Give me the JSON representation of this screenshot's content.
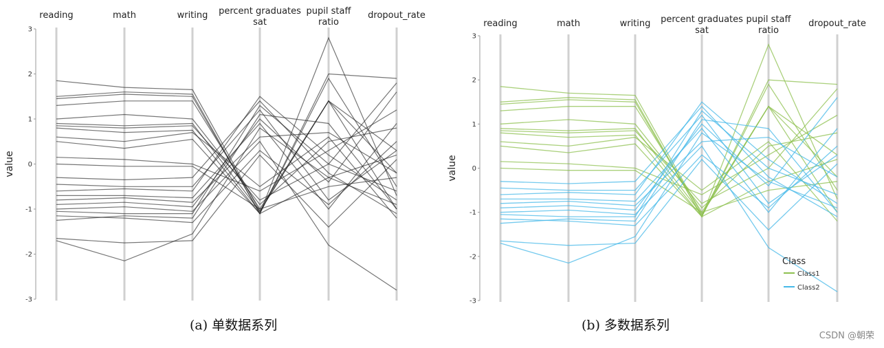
{
  "captions": {
    "left": "(a)  单数据系列",
    "right": "(b)  多数据系列"
  },
  "watermark": "CSDN @朝荣",
  "colors": {
    "single": "#222222",
    "class1": "#8dc04f",
    "class2": "#45b8e8",
    "axis": "#d0d0d0"
  },
  "chart_data": [
    {
      "type": "parallel-coordinates",
      "dimensions": [
        "reading",
        "math",
        "writing",
        "percent graduates sat",
        "pupil staff ratio",
        "dropout_rate"
      ],
      "ylabel": "value",
      "ylim": [
        -3,
        3
      ],
      "yticks": [
        3,
        2,
        1,
        0,
        -1,
        -2,
        -3
      ],
      "series": [
        {
          "values": [
            [
              1.85,
              1.7,
              1.65,
              -1.05,
              1.4,
              0.3
            ],
            [
              1.5,
              1.6,
              1.55,
              -1.1,
              2.8,
              -0.7
            ],
            [
              1.45,
              1.55,
              1.5,
              -1.1,
              2.0,
              1.9
            ],
            [
              1.3,
              1.4,
              1.4,
              -1.0,
              1.4,
              -0.2
            ],
            [
              1.0,
              1.1,
              1.0,
              -0.9,
              0.5,
              0.8
            ],
            [
              0.9,
              0.85,
              0.9,
              -1.05,
              1.4,
              -1.0
            ],
            [
              0.85,
              0.8,
              0.85,
              -0.8,
              0.0,
              1.8
            ],
            [
              0.8,
              0.7,
              0.75,
              -1.1,
              -0.3,
              0.2
            ],
            [
              0.6,
              0.5,
              0.7,
              -0.5,
              0.6,
              -1.2
            ],
            [
              0.5,
              0.35,
              0.55,
              -1.1,
              1.9,
              -0.5
            ],
            [
              0.15,
              0.1,
              0.0,
              -0.6,
              0.3,
              1.2
            ],
            [
              0.0,
              -0.05,
              -0.05,
              -1.0,
              -0.5,
              -0.3
            ],
            [
              -0.3,
              -0.35,
              -0.3,
              1.4,
              -0.2,
              -1.1
            ],
            [
              -0.45,
              -0.5,
              -0.5,
              1.2,
              -0.8,
              0.3
            ],
            [
              -0.6,
              -0.55,
              -0.6,
              1.5,
              0.2,
              -0.8
            ],
            [
              -0.7,
              -0.7,
              -0.75,
              0.9,
              -1.0,
              0.9
            ],
            [
              -0.8,
              -0.75,
              -0.85,
              0.6,
              0.7,
              -0.2
            ],
            [
              -0.9,
              -0.85,
              -0.95,
              1.0,
              -0.4,
              1.6
            ],
            [
              -1.0,
              -0.95,
              -1.05,
              0.5,
              -1.8,
              -2.8
            ],
            [
              -1.05,
              -1.1,
              -1.1,
              1.3,
              0.0,
              -0.6
            ],
            [
              -1.15,
              -1.2,
              -1.3,
              0.3,
              -0.9,
              0.5
            ],
            [
              -1.25,
              -1.15,
              -1.2,
              1.1,
              0.9,
              -1.0
            ],
            [
              -1.65,
              -1.75,
              -1.7,
              0.2,
              -1.4,
              0.1
            ],
            [
              -1.7,
              -2.15,
              -1.55,
              0.8,
              -0.3,
              -0.9
            ]
          ]
        }
      ]
    },
    {
      "type": "parallel-coordinates",
      "dimensions": [
        "reading",
        "math",
        "writing",
        "percent graduates sat",
        "pupil staff ratio",
        "dropout_rate"
      ],
      "ylabel": "value",
      "ylim": [
        -3,
        3
      ],
      "yticks": [
        3,
        2,
        1,
        0,
        -1,
        -2,
        -3
      ],
      "legend": {
        "title": "Class",
        "position": "bottom-right",
        "items": [
          "Class1",
          "Class2"
        ]
      },
      "series": [
        {
          "name": "Class1",
          "values": [
            [
              1.85,
              1.7,
              1.65,
              -1.05,
              1.4,
              0.3
            ],
            [
              1.5,
              1.6,
              1.55,
              -1.1,
              2.8,
              -0.7
            ],
            [
              1.45,
              1.55,
              1.5,
              -1.1,
              2.0,
              1.9
            ],
            [
              1.3,
              1.4,
              1.4,
              -1.0,
              1.4,
              -0.2
            ],
            [
              1.0,
              1.1,
              1.0,
              -0.9,
              0.5,
              0.8
            ],
            [
              0.9,
              0.85,
              0.9,
              -1.05,
              1.4,
              -1.0
            ],
            [
              0.85,
              0.8,
              0.85,
              -0.8,
              0.0,
              1.8
            ],
            [
              0.8,
              0.7,
              0.75,
              -1.1,
              -0.3,
              0.2
            ],
            [
              0.6,
              0.5,
              0.7,
              -0.5,
              0.6,
              -1.2
            ],
            [
              0.5,
              0.35,
              0.55,
              -1.1,
              1.9,
              -0.5
            ],
            [
              0.15,
              0.1,
              0.0,
              -0.6,
              0.3,
              1.2
            ],
            [
              0.0,
              -0.05,
              -0.05,
              -1.0,
              -0.5,
              -0.3
            ]
          ]
        },
        {
          "name": "Class2",
          "values": [
            [
              -0.3,
              -0.35,
              -0.3,
              1.4,
              -0.2,
              -1.1
            ],
            [
              -0.45,
              -0.5,
              -0.5,
              1.2,
              -0.8,
              0.3
            ],
            [
              -0.6,
              -0.55,
              -0.6,
              1.5,
              0.2,
              -0.8
            ],
            [
              -0.7,
              -0.7,
              -0.75,
              0.9,
              -1.0,
              0.9
            ],
            [
              -0.8,
              -0.75,
              -0.85,
              0.6,
              0.7,
              -0.2
            ],
            [
              -0.9,
              -0.85,
              -0.95,
              1.0,
              -0.4,
              1.6
            ],
            [
              -1.0,
              -0.95,
              -1.05,
              0.5,
              -1.8,
              -2.8
            ],
            [
              -1.05,
              -1.1,
              -1.1,
              1.3,
              0.0,
              -0.6
            ],
            [
              -1.15,
              -1.2,
              -1.3,
              0.3,
              -0.9,
              0.5
            ],
            [
              -1.25,
              -1.15,
              -1.2,
              1.1,
              0.9,
              -1.0
            ],
            [
              -1.65,
              -1.75,
              -1.7,
              0.2,
              -1.4,
              0.1
            ],
            [
              -1.7,
              -2.15,
              -1.55,
              0.8,
              -0.3,
              -0.9
            ]
          ]
        }
      ]
    }
  ]
}
